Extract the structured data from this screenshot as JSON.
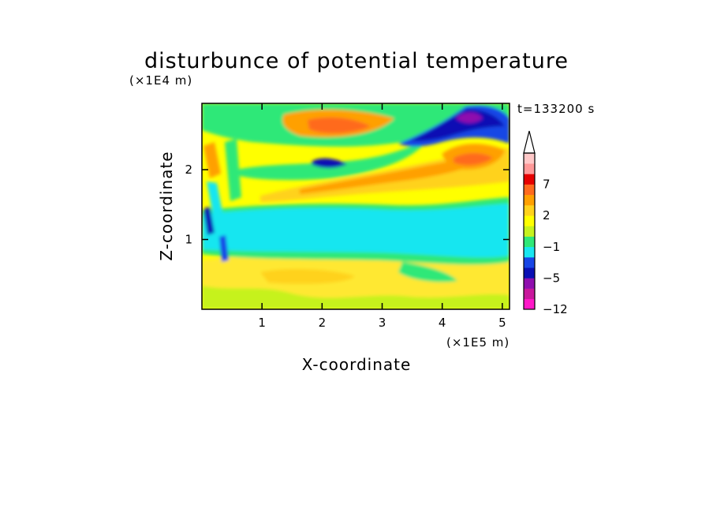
{
  "chart_data": {
    "type": "heatmap",
    "title": "disturbunce of potential temperature",
    "xlabel": "X-coordinate",
    "ylabel": "Z-coordinate",
    "x_unit": "(×1E5 m)",
    "y_unit": "(×1E4 m)",
    "time_label": "t=133200 s",
    "xlim": [
      0,
      5.12
    ],
    "ylim": [
      0,
      2.95
    ],
    "x_ticks": [
      "1",
      "2",
      "3",
      "4",
      "5"
    ],
    "x_tick_values": [
      1,
      2,
      3,
      4,
      5
    ],
    "y_ticks": [
      "1",
      "2"
    ],
    "y_tick_values": [
      1,
      2
    ],
    "colorbar": {
      "colors": [
        "#ff19c8",
        "#c8189c",
        "#8f0fae",
        "#0a10b4",
        "#1846e6",
        "#19e6f0",
        "#2fe878",
        "#c6f21e",
        "#ffff00",
        "#ffd21c",
        "#ffa000",
        "#ff6a1e",
        "#e60000",
        "#ff9999",
        "#ffc8c8"
      ],
      "tick_labels": [
        "7",
        "2",
        "−1",
        "−5",
        "−12"
      ],
      "tick_bins": [
        12,
        9,
        6,
        3,
        0
      ],
      "extend": "max"
    },
    "field_features": [
      {
        "feature": "background layer",
        "value_class": "yellow",
        "x": [
          0,
          5.12
        ],
        "z": [
          0,
          2.95
        ]
      },
      {
        "feature": "cyan band",
        "value_class": "cyan",
        "x": [
          0,
          5.12
        ],
        "z": [
          0.65,
          1.45
        ]
      },
      {
        "feature": "green band",
        "value_class": "green",
        "x": [
          0,
          5.12
        ],
        "z": [
          1.45,
          1.6
        ]
      },
      {
        "feature": "orange band",
        "value_class": "orange",
        "x": [
          1.5,
          5.12
        ],
        "z": [
          1.6,
          2.35
        ]
      },
      {
        "feature": "upper cold core",
        "value_class": "purple",
        "x": [
          4.2,
          4.6
        ],
        "z": [
          2.6,
          2.95
        ]
      },
      {
        "feature": "upper cold cell",
        "value_class": "dark-blue",
        "x": [
          3.3,
          5.12
        ],
        "z": [
          2.35,
          2.95
        ]
      },
      {
        "feature": "upper warm patch",
        "value_class": "orange",
        "x": [
          1.4,
          2.9
        ],
        "z": [
          2.45,
          2.85
        ]
      }
    ]
  }
}
